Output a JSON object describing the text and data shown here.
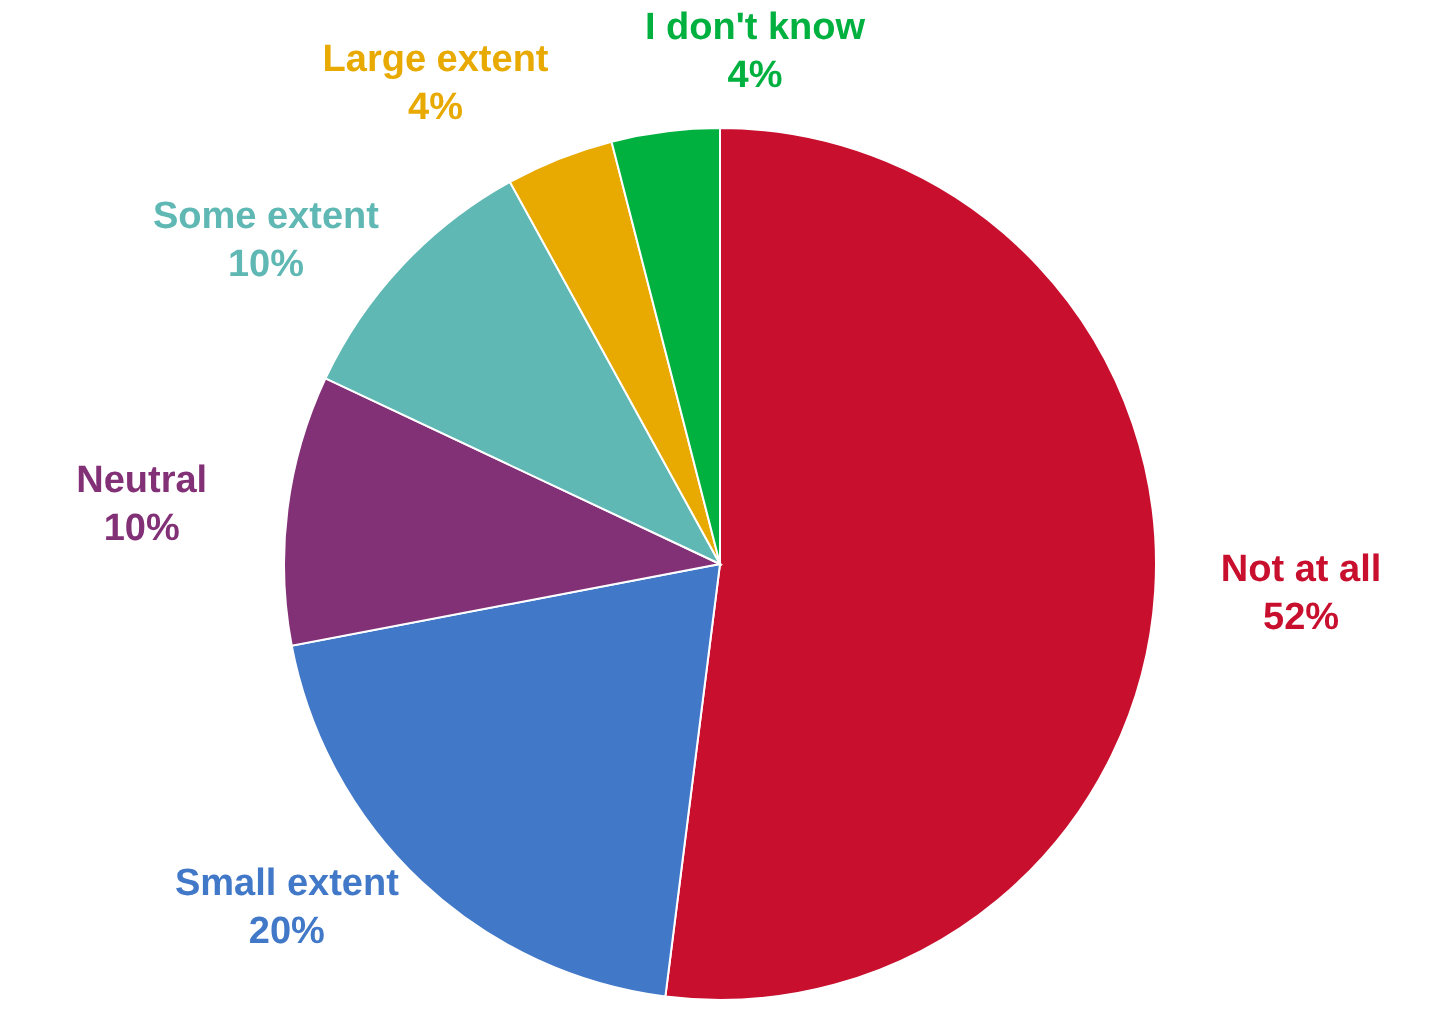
{
  "chart_data": {
    "type": "pie",
    "categories": [
      "Not at all",
      "Small extent",
      "Neutral",
      "Some extent",
      "Large extent",
      "I don't know"
    ],
    "values": [
      52,
      20,
      10,
      10,
      4,
      4
    ],
    "value_labels": [
      "52%",
      "20%",
      "10%",
      "10%",
      "4%",
      "4%"
    ],
    "colors": [
      "#c8102e",
      "#4178c8",
      "#833177",
      "#5fb8b3",
      "#e8a900",
      "#00b140"
    ]
  }
}
